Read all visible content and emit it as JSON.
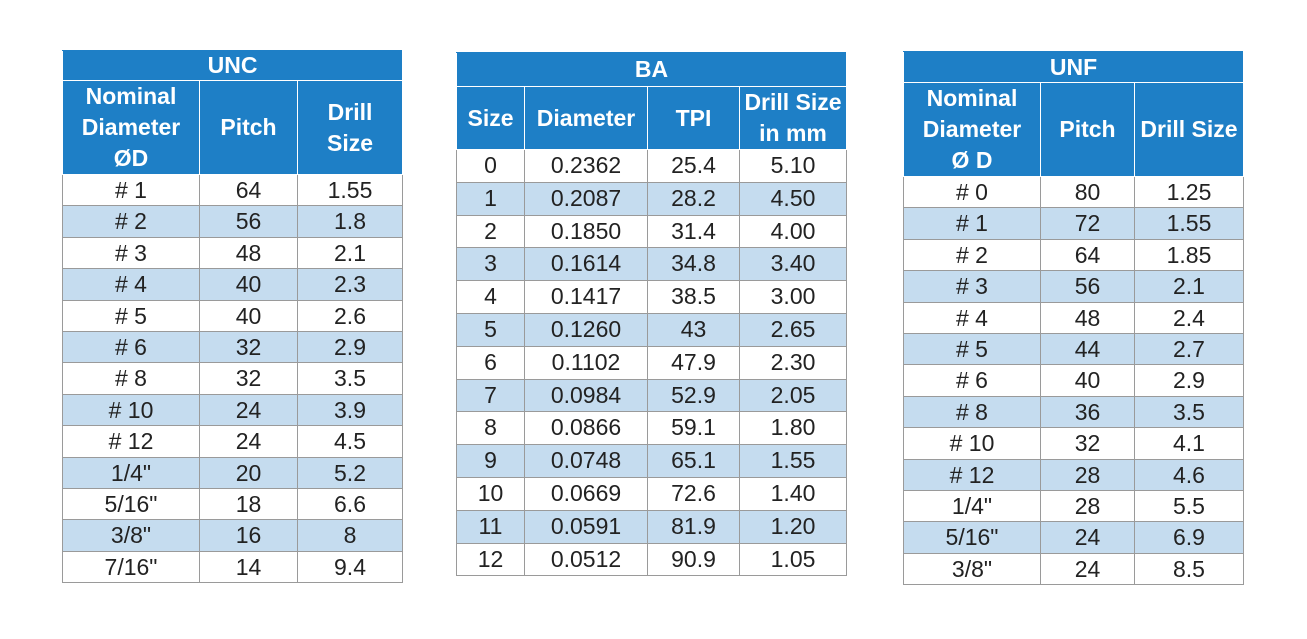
{
  "unc": {
    "title": "UNC",
    "headers": {
      "nominal_line1": "Nominal",
      "nominal_line2": "Diameter",
      "nominal_line3": "ØD",
      "pitch": "Pitch",
      "drill_line1": "Drill",
      "drill_line2": "Size"
    },
    "rows": [
      [
        "# 1",
        "64",
        "1.55"
      ],
      [
        "# 2",
        "56",
        "1.8"
      ],
      [
        "# 3",
        "48",
        "2.1"
      ],
      [
        "# 4",
        "40",
        "2.3"
      ],
      [
        "# 5",
        "40",
        "2.6"
      ],
      [
        "# 6",
        "32",
        "2.9"
      ],
      [
        "# 8",
        "32",
        "3.5"
      ],
      [
        "# 10",
        "24",
        "3.9"
      ],
      [
        "# 12",
        "24",
        "4.5"
      ],
      [
        "1/4\"",
        "20",
        "5.2"
      ],
      [
        "5/16\"",
        "18",
        "6.6"
      ],
      [
        "3/8\"",
        "16",
        "8"
      ],
      [
        "7/16\"",
        "14",
        "9.4"
      ]
    ]
  },
  "ba": {
    "title": "BA",
    "headers": {
      "size": "Size",
      "diameter": "Diameter",
      "tpi": "TPI",
      "drill_line1": "Drill Size",
      "drill_line2": "in mm"
    },
    "rows": [
      [
        "0",
        "0.2362",
        "25.4",
        "5.10"
      ],
      [
        "1",
        "0.2087",
        "28.2",
        "4.50"
      ],
      [
        "2",
        "0.1850",
        "31.4",
        "4.00"
      ],
      [
        "3",
        "0.1614",
        "34.8",
        "3.40"
      ],
      [
        "4",
        "0.1417",
        "38.5",
        "3.00"
      ],
      [
        "5",
        "0.1260",
        "43",
        "2.65"
      ],
      [
        "6",
        "0.1102",
        "47.9",
        "2.30"
      ],
      [
        "7",
        "0.0984",
        "52.9",
        "2.05"
      ],
      [
        "8",
        "0.0866",
        "59.1",
        "1.80"
      ],
      [
        "9",
        "0.0748",
        "65.1",
        "1.55"
      ],
      [
        "10",
        "0.0669",
        "72.6",
        "1.40"
      ],
      [
        "11",
        "0.0591",
        "81.9",
        "1.20"
      ],
      [
        "12",
        "0.0512",
        "90.9",
        "1.05"
      ]
    ]
  },
  "unf": {
    "title": "UNF",
    "headers": {
      "nominal_line1": "Nominal",
      "nominal_line2": "Diameter",
      "nominal_line3": "Ø D",
      "pitch": "Pitch",
      "drill": "Drill Size"
    },
    "rows": [
      [
        "# 0",
        "80",
        "1.25"
      ],
      [
        "# 1",
        "72",
        "1.55"
      ],
      [
        "# 2",
        "64",
        "1.85"
      ],
      [
        "# 3",
        "56",
        "2.1"
      ],
      [
        "# 4",
        "48",
        "2.4"
      ],
      [
        "# 5",
        "44",
        "2.7"
      ],
      [
        "# 6",
        "40",
        "2.9"
      ],
      [
        "# 8",
        "36",
        "3.5"
      ],
      [
        "# 10",
        "32",
        "4.1"
      ],
      [
        "# 12",
        "28",
        "4.6"
      ],
      [
        "1/4\"",
        "28",
        "5.5"
      ],
      [
        "5/16\"",
        "24",
        "6.9"
      ],
      [
        "3/8\"",
        "24",
        "8.5"
      ]
    ]
  },
  "colors": {
    "header_blue": "#1e7fc6",
    "row_alt_blue": "#c5dcef",
    "row_white": "#ffffff"
  }
}
